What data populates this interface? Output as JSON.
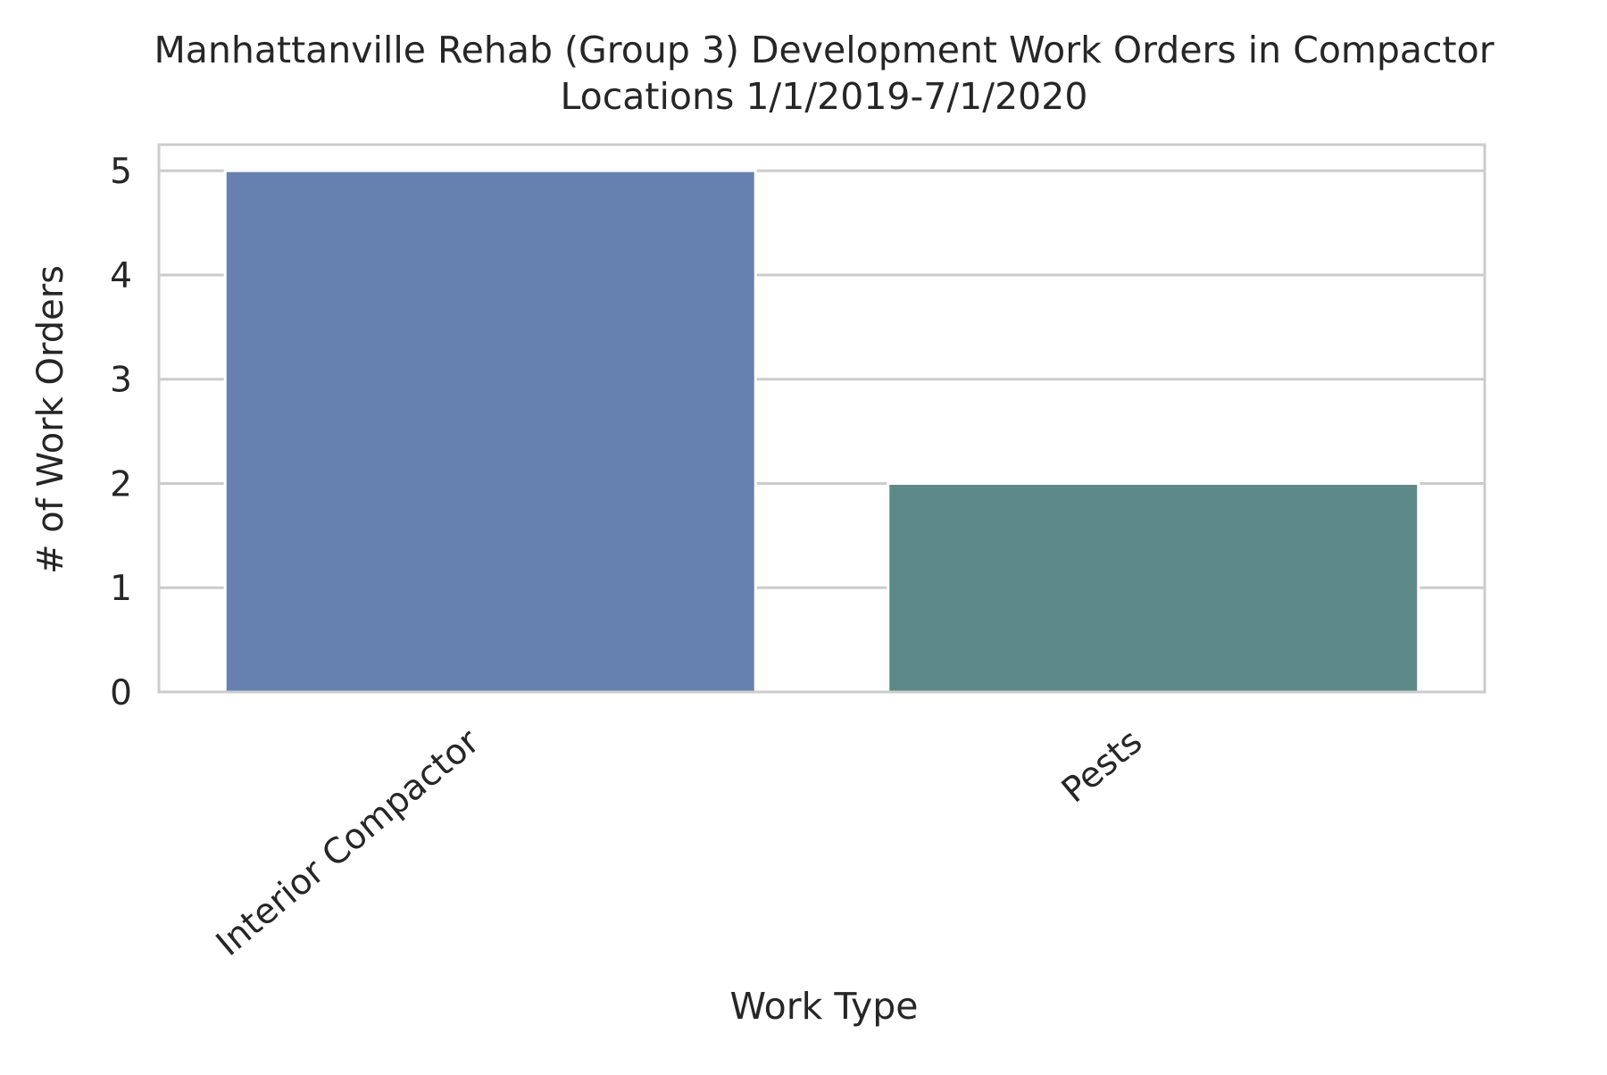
{
  "chart_data": {
    "type": "bar",
    "title": "Manhattanville Rehab (Group 3) Development Work Orders in Compactor Locations 1/1/2019-7/1/2020",
    "title_lines": [
      "Manhattanville Rehab (Group 3) Development Work Orders in Compactor",
      "Locations 1/1/2019-7/1/2020"
    ],
    "xlabel": "Work Type",
    "ylabel": "# of Work Orders",
    "categories": [
      "Interior Compactor",
      "Pests"
    ],
    "values": [
      5,
      2
    ],
    "colors": [
      "#6680B0",
      "#5D8A88"
    ],
    "ylim": [
      0,
      5.25
    ],
    "yticks": [
      0,
      1,
      2,
      3,
      4,
      5
    ],
    "grid": true,
    "style": {
      "grid_color": "#cccccc",
      "spine_color": "#cccccc",
      "text_color": "#262626",
      "background": "#ffffff"
    }
  }
}
